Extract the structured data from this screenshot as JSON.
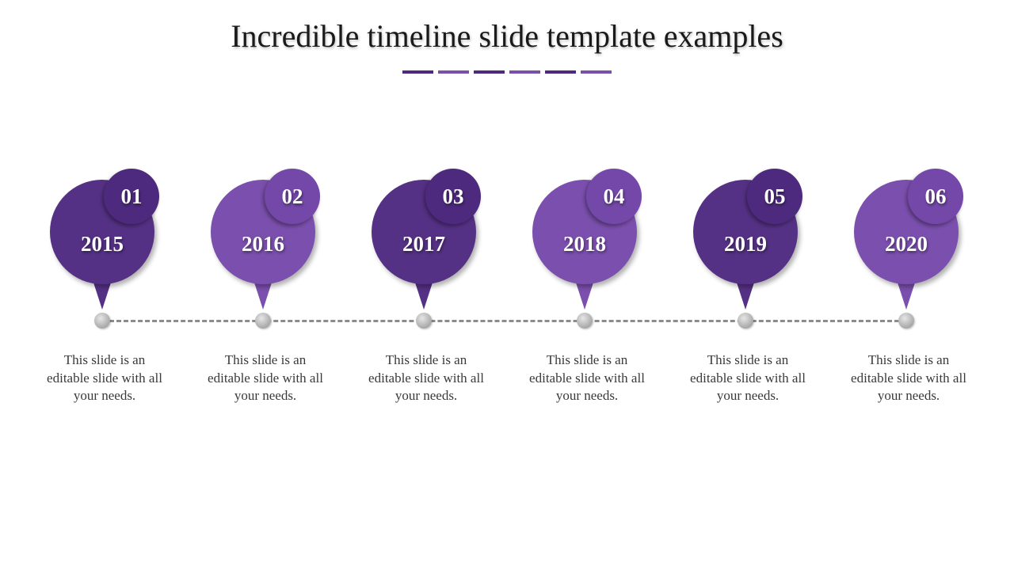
{
  "title": "Incredible timeline slide template examples",
  "colors": {
    "dark_purple": "#553185",
    "light_purple": "#7b4fad",
    "dark_num": "#4e2a7e",
    "light_num": "#7448a8"
  },
  "steps": [
    {
      "number": "01",
      "year": "2015",
      "text": "This slide is an editable slide with all your needs."
    },
    {
      "number": "02",
      "year": "2016",
      "text": "This slide is an editable slide with all your needs."
    },
    {
      "number": "03",
      "year": "2017",
      "text": "This slide is an editable slide with all your needs."
    },
    {
      "number": "04",
      "year": "2018",
      "text": "This slide is an editable slide with all your needs."
    },
    {
      "number": "05",
      "year": "2019",
      "text": "This slide is an editable slide with all your needs."
    },
    {
      "number": "06",
      "year": "2020",
      "text": "This slide is an editable slide with all your needs."
    }
  ]
}
